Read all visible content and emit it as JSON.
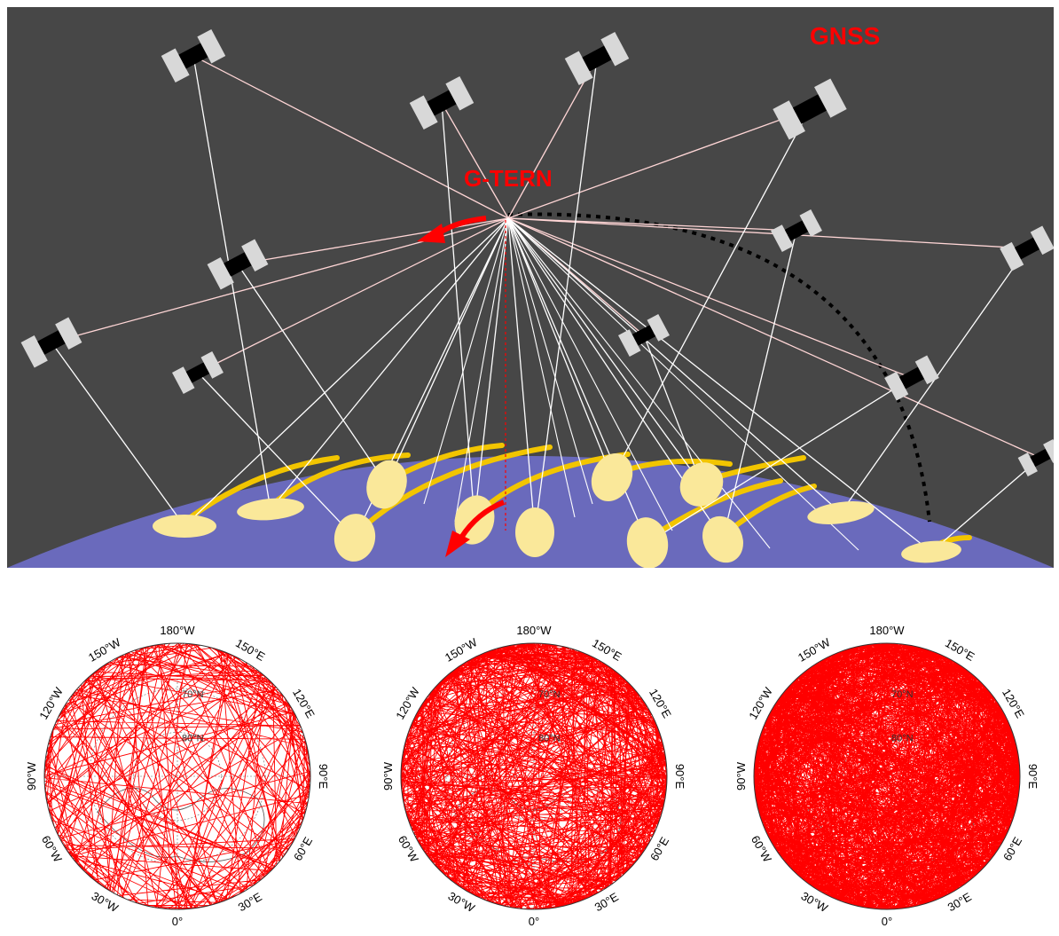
{
  "diagram": {
    "gnss_label": "GNSS",
    "receiver_label": "G-TERN",
    "colors": {
      "background": "#474747",
      "earth": "#6a6abc",
      "footprint": "#fae89a",
      "track": "#f2c500",
      "arrow": "#ff0000",
      "link_white": "#ffffff",
      "link_pink": "#ffd6d6"
    },
    "icons": [
      "satellite-icon",
      "arrow-icon"
    ]
  },
  "polar_maps": {
    "tick_labels": {
      "top": "180°W",
      "bottom": "0°",
      "left": "90°W",
      "right": "90°E",
      "top_left_1": "150°W",
      "top_left_2": "120°W",
      "top_right_1": "150°E",
      "top_right_2": "120°E",
      "bottom_left_1": "60°W",
      "bottom_left_2": "30°W",
      "bottom_right_1": "60°E",
      "bottom_right_2": "30°E"
    },
    "inner_labels": {
      "lat_70": "70°N",
      "lat_80": "80°N"
    },
    "track_color": "#ff0000",
    "maps": [
      {
        "density": "low"
      },
      {
        "density": "medium"
      },
      {
        "density": "high"
      }
    ]
  }
}
